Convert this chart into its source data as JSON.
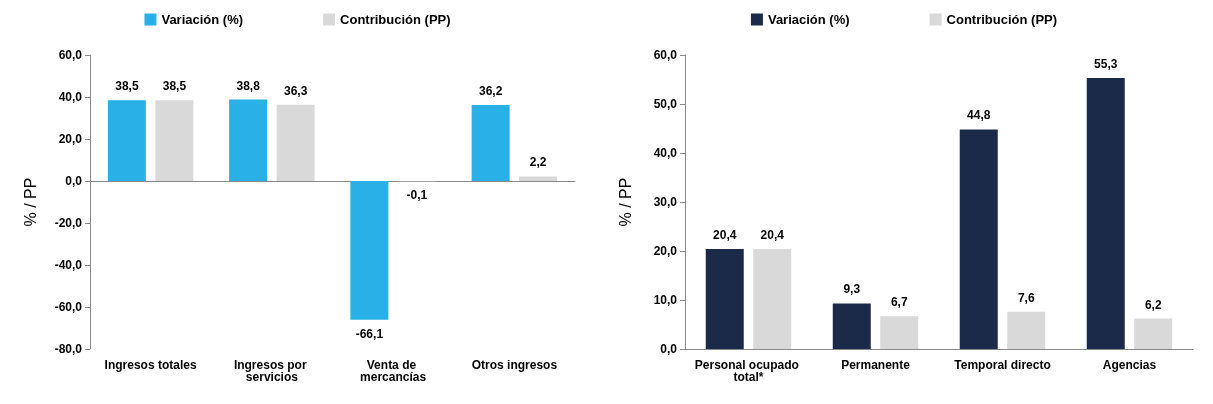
{
  "chart_data": [
    {
      "type": "bar",
      "ylabel": "% / PP",
      "categories": [
        "Ingresos totales",
        "Ingresos por servicios",
        "Venta de mercancías",
        "Otros ingresos"
      ],
      "series": [
        {
          "name": "Variación (%)",
          "color": "#29b0e6",
          "values": [
            38.5,
            38.8,
            -66.1,
            36.2
          ],
          "value_labels": [
            "38,5",
            "38,8",
            "-66,1",
            "36,2"
          ]
        },
        {
          "name": "Contribución (PP)",
          "color": "#d9d9d9",
          "values": [
            38.5,
            36.3,
            -0.1,
            2.2
          ],
          "value_labels": [
            "38,5",
            "36,3",
            "-0,1",
            "2,2"
          ]
        }
      ],
      "ylim": [
        -80,
        60
      ],
      "yticks": [
        {
          "value": -80,
          "label": "-80,0"
        },
        {
          "value": -60,
          "label": "-60,0"
        },
        {
          "value": -40,
          "label": "-40,0"
        },
        {
          "value": -20,
          "label": "-20,0"
        },
        {
          "value": 0,
          "label": "0,0"
        },
        {
          "value": 20,
          "label": "20,0"
        },
        {
          "value": 40,
          "label": "40,0"
        },
        {
          "value": 60,
          "label": "60,0"
        }
      ],
      "legend": "top"
    },
    {
      "type": "bar",
      "ylabel": "% / PP",
      "categories": [
        "Personal ocupado total*",
        "Permanente",
        "Temporal directo",
        "Agencias"
      ],
      "series": [
        {
          "name": "Variación (%)",
          "color": "#1c2a4a",
          "values": [
            20.4,
            9.3,
            44.8,
            55.3
          ],
          "value_labels": [
            "20,4",
            "9,3",
            "44,8",
            "55,3"
          ]
        },
        {
          "name": "Contribución (PP)",
          "color": "#d9d9d9",
          "values": [
            20.4,
            6.7,
            7.6,
            6.2
          ],
          "value_labels": [
            "20,4",
            "6,7",
            "7,6",
            "6,2"
          ]
        }
      ],
      "ylim": [
        0,
        60
      ],
      "yticks": [
        {
          "value": 0,
          "label": "0,0"
        },
        {
          "value": 10,
          "label": "10,0"
        },
        {
          "value": 20,
          "label": "20,0"
        },
        {
          "value": 30,
          "label": "30,0"
        },
        {
          "value": 40,
          "label": "40,0"
        },
        {
          "value": 50,
          "label": "50,0"
        },
        {
          "value": 60,
          "label": "60,0"
        }
      ],
      "legend": "top"
    }
  ]
}
